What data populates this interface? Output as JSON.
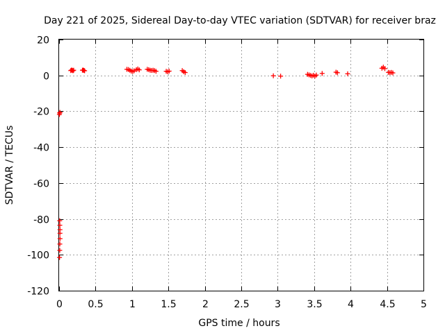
{
  "chart_data": {
    "type": "scatter",
    "title": "Day 221 of 2025, Sidereal Day-to-day VTEC variation (SDTVAR) for receiver braz",
    "xlabel": "GPS time / hours",
    "ylabel": "SDTVAR / TECUs",
    "xlim": [
      0,
      5
    ],
    "ylim": [
      -120,
      20
    ],
    "grid": true,
    "marker": "plus",
    "marker_color": "#ff0000",
    "xticks": [
      0,
      0.5,
      1,
      1.5,
      2,
      2.5,
      3,
      3.5,
      4,
      4.5,
      5
    ],
    "xtick_labels": [
      "0",
      "0.5",
      "1",
      "1.5",
      "2",
      "2.5",
      "3",
      "3.5",
      "4",
      "4.5",
      "5"
    ],
    "yticks": [
      20,
      0,
      -20,
      -40,
      -60,
      -80,
      -100,
      -120
    ],
    "ytick_labels": [
      "20",
      "0",
      "-20",
      "-40",
      "-60",
      "-80",
      "-100",
      "-120"
    ],
    "series": [
      {
        "name": "SDTVAR",
        "points": [
          [
            0.004,
            -21.8
          ],
          [
            0.008,
            -21.0
          ],
          [
            0.012,
            -20.6
          ],
          [
            0.008,
            -81.0
          ],
          [
            0.01,
            -83.5
          ],
          [
            0.012,
            -86.0
          ],
          [
            0.012,
            -88.0
          ],
          [
            0.013,
            -91.0
          ],
          [
            0.01,
            -94.0
          ],
          [
            0.009,
            -97.5
          ],
          [
            0.006,
            -101.5
          ],
          [
            0.16,
            2.7
          ],
          [
            0.17,
            3.0
          ],
          [
            0.18,
            2.9
          ],
          [
            0.19,
            2.6
          ],
          [
            0.2,
            2.9
          ],
          [
            0.32,
            2.9
          ],
          [
            0.33,
            3.0
          ],
          [
            0.34,
            2.8
          ],
          [
            0.35,
            2.6
          ],
          [
            0.93,
            3.4
          ],
          [
            0.95,
            3.3
          ],
          [
            0.97,
            2.9
          ],
          [
            0.99,
            2.4
          ],
          [
            1.01,
            2.2
          ],
          [
            1.03,
            2.6
          ],
          [
            1.06,
            3.2
          ],
          [
            1.08,
            3.6
          ],
          [
            1.1,
            3.1
          ],
          [
            1.21,
            3.4
          ],
          [
            1.23,
            3.2
          ],
          [
            1.25,
            2.9
          ],
          [
            1.27,
            2.8
          ],
          [
            1.29,
            2.9
          ],
          [
            1.31,
            2.7
          ],
          [
            1.33,
            2.3
          ],
          [
            1.47,
            2.3
          ],
          [
            1.49,
            2.0
          ],
          [
            1.51,
            2.4
          ],
          [
            1.69,
            2.7
          ],
          [
            1.71,
            2.1
          ],
          [
            1.73,
            1.6
          ],
          [
            2.94,
            -0.2
          ],
          [
            3.04,
            -0.4
          ],
          [
            3.41,
            0.6
          ],
          [
            3.43,
            0.3
          ],
          [
            3.45,
            0.0
          ],
          [
            3.47,
            -0.3
          ],
          [
            3.49,
            0.1
          ],
          [
            3.51,
            -0.4
          ],
          [
            3.53,
            0.2
          ],
          [
            3.61,
            1.1
          ],
          [
            3.8,
            1.8
          ],
          [
            3.82,
            1.5
          ],
          [
            3.96,
            0.9
          ],
          [
            4.43,
            4.0
          ],
          [
            4.45,
            4.6
          ],
          [
            4.47,
            3.8
          ],
          [
            4.52,
            1.7
          ],
          [
            4.54,
            1.5
          ],
          [
            4.56,
            1.7
          ],
          [
            4.58,
            1.4
          ]
        ]
      }
    ]
  }
}
